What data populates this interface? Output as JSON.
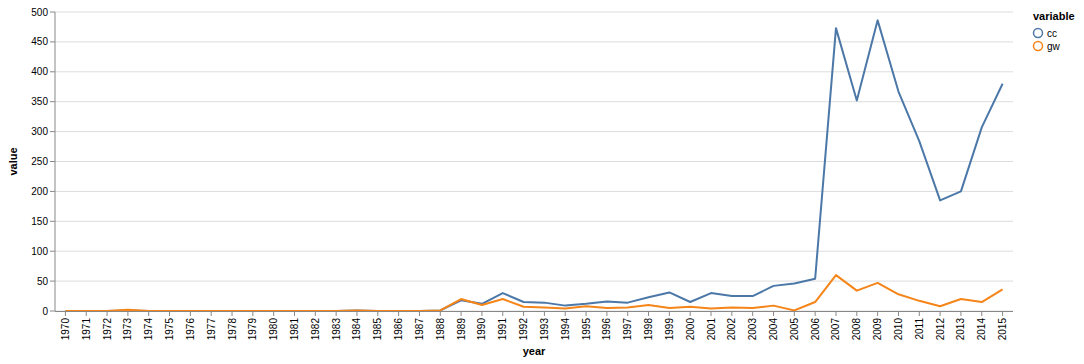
{
  "chart_data": {
    "type": "line",
    "x_label": "year",
    "y_label": "value",
    "legend_title": "variable",
    "categories": [
      "1970",
      "1971",
      "1972",
      "1973",
      "1974",
      "1975",
      "1976",
      "1977",
      "1978",
      "1979",
      "1980",
      "1981",
      "1982",
      "1983",
      "1984",
      "1985",
      "1986",
      "1987",
      "1988",
      "1989",
      "1990",
      "1991",
      "1992",
      "1993",
      "1994",
      "1995",
      "1996",
      "1997",
      "1998",
      "1999",
      "2000",
      "2001",
      "2002",
      "2003",
      "2004",
      "2005",
      "2006",
      "2007",
      "2008",
      "2009",
      "2010",
      "2011",
      "2012",
      "2013",
      "2014",
      "2015"
    ],
    "series": [
      {
        "name": "cc",
        "color": "#4c78a8",
        "values": [
          0,
          0,
          0,
          1,
          0,
          0,
          0,
          0,
          0,
          0,
          0,
          0,
          0,
          0,
          1,
          0,
          0,
          0,
          1,
          18,
          12,
          30,
          15,
          14,
          9,
          12,
          16,
          14,
          23,
          31,
          15,
          30,
          25,
          25,
          42,
          46,
          54,
          473,
          352,
          486,
          367,
          284,
          185,
          200,
          307,
          380
        ]
      },
      {
        "name": "gw",
        "color": "#f58518",
        "values": [
          0,
          0,
          0,
          2,
          0,
          0,
          0,
          0,
          0,
          0,
          0,
          0,
          0,
          0,
          1,
          0,
          0,
          0,
          1,
          20,
          10,
          20,
          7,
          6,
          4,
          8,
          5,
          6,
          10,
          5,
          7,
          4,
          6,
          5,
          9,
          1,
          15,
          60,
          34,
          47,
          28,
          17,
          8,
          20,
          15,
          36
        ]
      }
    ],
    "ylim": [
      0,
      500
    ],
    "yticks": [
      0,
      50,
      100,
      150,
      200,
      250,
      300,
      350,
      400,
      450,
      500
    ],
    "grid": true,
    "legend": "right"
  }
}
